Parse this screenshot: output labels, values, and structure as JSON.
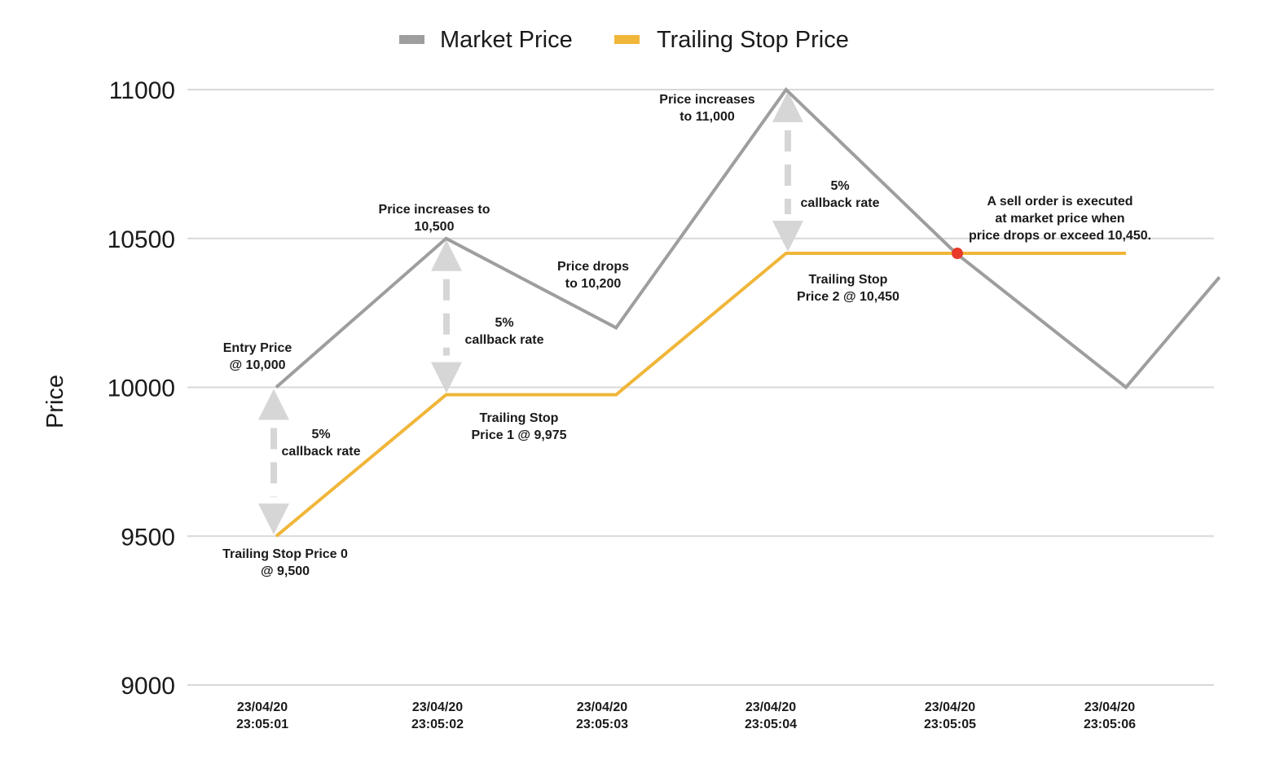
{
  "chart_data": {
    "type": "line",
    "title": "",
    "xlabel": "",
    "ylabel": "Price",
    "ylim": [
      9000,
      11000
    ],
    "yticks": [
      "11000",
      "10500",
      "10000",
      "9500",
      "9000"
    ],
    "grid": true,
    "legend_position": "top-center",
    "x_categories": [
      "23/04/20\n23:05:01",
      "23/04/20\n23:05:02",
      "23/04/20\n23:05:03",
      "23/04/20\n23:05:04",
      "23/04/20\n23:05:05",
      "23/04/20\n23:05:06"
    ],
    "series": [
      {
        "name": "Market Price",
        "color": "#9e9e9e",
        "points": [
          [
            0,
            10000
          ],
          [
            1,
            10500
          ],
          [
            2,
            10200
          ],
          [
            3,
            11000
          ],
          [
            4,
            10450
          ],
          [
            5,
            10000
          ],
          [
            5.55,
            10370
          ]
        ]
      },
      {
        "name": "Trailing Stop Price",
        "color": "#f0b63a",
        "points": [
          [
            0,
            9500
          ],
          [
            1,
            9975
          ],
          [
            2,
            9975
          ],
          [
            3,
            10450
          ],
          [
            4,
            10450
          ],
          [
            5,
            10450
          ]
        ]
      }
    ],
    "execution_point": {
      "x": 4,
      "y": 10450,
      "color": "#e8392a"
    },
    "callback_arrows": [
      {
        "x": 0,
        "from": 10000,
        "to": 9500
      },
      {
        "x": 1,
        "from": 10500,
        "to": 9975
      },
      {
        "x": 3,
        "from": 11000,
        "to": 10450
      }
    ],
    "annotations": [
      {
        "id": "entry",
        "lines": [
          "Entry Price",
          "@ 10,000"
        ]
      },
      {
        "id": "cb1",
        "lines": [
          "5%",
          "callback rate"
        ]
      },
      {
        "id": "ts0",
        "lines": [
          "Trailing Stop Price 0",
          "@ 9,500"
        ]
      },
      {
        "id": "inc1",
        "lines": [
          "Price increases to",
          "10,500"
        ]
      },
      {
        "id": "cb2",
        "lines": [
          "5%",
          "callback rate"
        ]
      },
      {
        "id": "ts1",
        "lines": [
          "Trailing Stop",
          "Price 1 @ 9,975"
        ]
      },
      {
        "id": "drop",
        "lines": [
          "Price drops",
          "to 10,200"
        ]
      },
      {
        "id": "inc2",
        "lines": [
          "Price increases",
          "to 11,000"
        ]
      },
      {
        "id": "cb3",
        "lines": [
          "5%",
          "callback rate"
        ]
      },
      {
        "id": "ts2",
        "lines": [
          "Trailing Stop",
          "Price 2 @ 10,450"
        ]
      },
      {
        "id": "sell",
        "lines": [
          "A sell order is executed",
          "at market price when",
          "price drops or exceed 10,450."
        ]
      }
    ]
  }
}
